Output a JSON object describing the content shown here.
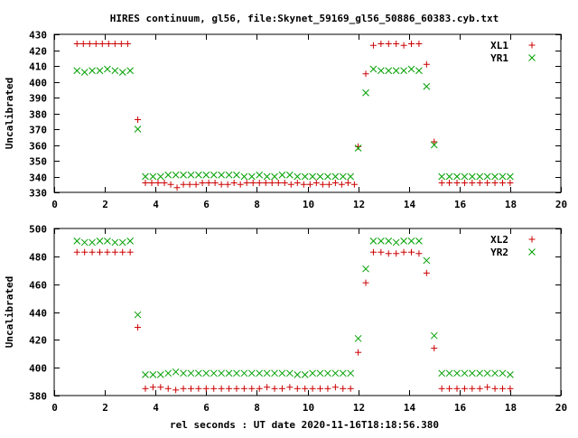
{
  "title": "HIRES continuum, gl56, file:Skynet_59169_gl56_50886_60383.cyb.txt",
  "xlabel": "rel seconds : UT date 2020-11-16T18:18:56.380",
  "colors": {
    "red": "#cc0000",
    "green": "#00a000",
    "frame": "#000000"
  },
  "chart_data": [
    {
      "type": "scatter",
      "ylabel": "Uncalibrated",
      "xlim": [
        0,
        20
      ],
      "ylim": [
        330,
        430
      ],
      "xticks": [
        0,
        2,
        4,
        6,
        8,
        10,
        12,
        14,
        16,
        18,
        20
      ],
      "yticks": [
        330,
        340,
        350,
        360,
        370,
        380,
        390,
        400,
        410,
        420,
        430
      ],
      "legend_position": "top-right",
      "series": [
        {
          "name": "XL1",
          "marker": "plus",
          "color": "#cc0000",
          "x": [
            0.9,
            1.15,
            1.4,
            1.65,
            1.9,
            2.15,
            2.4,
            2.65,
            2.9,
            3.3,
            3.6,
            3.85,
            4.1,
            4.35,
            4.6,
            4.85,
            5.1,
            5.35,
            5.6,
            5.85,
            6.1,
            6.35,
            6.6,
            6.85,
            7.1,
            7.35,
            7.6,
            7.85,
            8.1,
            8.35,
            8.6,
            8.85,
            9.1,
            9.35,
            9.6,
            9.85,
            10.1,
            10.35,
            10.6,
            10.85,
            11.1,
            11.35,
            11.6,
            11.85,
            12.0,
            12.3,
            12.6,
            12.9,
            13.2,
            13.5,
            13.8,
            14.1,
            14.4,
            14.7,
            15.0,
            15.3,
            15.6,
            15.9,
            16.2,
            16.5,
            16.8,
            17.1,
            17.4,
            17.7,
            18.0
          ],
          "y": [
            424,
            424,
            424,
            424,
            424,
            424,
            424,
            424,
            424,
            376,
            336,
            336,
            336,
            336,
            335,
            333,
            335,
            335,
            335,
            336,
            336,
            336,
            335,
            335,
            336,
            335,
            336,
            336,
            336,
            336,
            336,
            336,
            336,
            335,
            336,
            335,
            335,
            336,
            335,
            335,
            336,
            335,
            336,
            335,
            359,
            405,
            423,
            424,
            424,
            424,
            423,
            424,
            424,
            411,
            362,
            336,
            336,
            336,
            336,
            336,
            336,
            336,
            336,
            336,
            336
          ]
        },
        {
          "name": "YR1",
          "marker": "cross",
          "color": "#00a000",
          "x": [
            0.9,
            1.2,
            1.5,
            1.8,
            2.1,
            2.4,
            2.7,
            3.0,
            3.3,
            3.6,
            3.9,
            4.2,
            4.5,
            4.8,
            5.1,
            5.4,
            5.7,
            6.0,
            6.3,
            6.6,
            6.9,
            7.2,
            7.5,
            7.8,
            8.1,
            8.4,
            8.7,
            9.0,
            9.3,
            9.6,
            9.9,
            10.2,
            10.5,
            10.8,
            11.1,
            11.4,
            11.7,
            12.0,
            12.3,
            12.6,
            12.9,
            13.2,
            13.5,
            13.8,
            14.1,
            14.4,
            14.7,
            15.0,
            15.3,
            15.6,
            15.9,
            16.2,
            16.5,
            16.8,
            17.1,
            17.4,
            17.7,
            18.0
          ],
          "y": [
            407,
            406,
            407,
            407,
            408,
            407,
            406,
            407,
            370,
            340,
            340,
            340,
            341,
            341,
            341,
            341,
            341,
            341,
            341,
            341,
            341,
            341,
            340,
            340,
            341,
            340,
            340,
            341,
            341,
            340,
            340,
            340,
            340,
            340,
            340,
            340,
            340,
            358,
            393,
            408,
            407,
            407,
            407,
            407,
            408,
            407,
            397,
            360,
            340,
            340,
            340,
            340,
            340,
            340,
            340,
            340,
            340,
            340
          ]
        }
      ]
    },
    {
      "type": "scatter",
      "ylabel": "Uncalibrated",
      "xlim": [
        0,
        20
      ],
      "ylim": [
        380,
        500
      ],
      "xticks": [
        0,
        2,
        4,
        6,
        8,
        10,
        12,
        14,
        16,
        18,
        20
      ],
      "yticks": [
        380,
        400,
        420,
        440,
        460,
        480,
        500
      ],
      "legend_position": "top-right",
      "series": [
        {
          "name": "XL2",
          "marker": "plus",
          "color": "#cc0000",
          "x": [
            0.9,
            1.2,
            1.5,
            1.8,
            2.1,
            2.4,
            2.7,
            3.0,
            3.3,
            3.6,
            3.9,
            4.2,
            4.5,
            4.8,
            5.1,
            5.4,
            5.7,
            6.0,
            6.3,
            6.6,
            6.9,
            7.2,
            7.5,
            7.8,
            8.1,
            8.4,
            8.7,
            9.0,
            9.3,
            9.6,
            9.9,
            10.2,
            10.5,
            10.8,
            11.1,
            11.4,
            11.7,
            12.0,
            12.3,
            12.6,
            12.9,
            13.2,
            13.5,
            13.8,
            14.1,
            14.4,
            14.7,
            15.0,
            15.3,
            15.6,
            15.9,
            16.2,
            16.5,
            16.8,
            17.1,
            17.4,
            17.7,
            18.0
          ],
          "y": [
            483,
            483,
            483,
            483,
            483,
            483,
            483,
            483,
            429,
            385,
            386,
            386,
            385,
            384,
            385,
            385,
            385,
            385,
            385,
            385,
            385,
            385,
            385,
            385,
            385,
            386,
            385,
            385,
            386,
            385,
            385,
            385,
            385,
            385,
            386,
            385,
            385,
            411,
            461,
            483,
            483,
            482,
            482,
            483,
            483,
            482,
            468,
            414,
            385,
            385,
            385,
            385,
            385,
            385,
            386,
            385,
            385,
            385
          ]
        },
        {
          "name": "YR2",
          "marker": "cross",
          "color": "#00a000",
          "x": [
            0.9,
            1.2,
            1.5,
            1.8,
            2.1,
            2.4,
            2.7,
            3.0,
            3.3,
            3.6,
            3.9,
            4.2,
            4.5,
            4.8,
            5.1,
            5.4,
            5.7,
            6.0,
            6.3,
            6.6,
            6.9,
            7.2,
            7.5,
            7.8,
            8.1,
            8.4,
            8.7,
            9.0,
            9.3,
            9.6,
            9.9,
            10.2,
            10.5,
            10.8,
            11.1,
            11.4,
            11.7,
            12.0,
            12.3,
            12.6,
            12.9,
            13.2,
            13.5,
            13.8,
            14.1,
            14.4,
            14.7,
            15.0,
            15.3,
            15.6,
            15.9,
            16.2,
            16.5,
            16.8,
            17.1,
            17.4,
            17.7,
            18.0
          ],
          "y": [
            491,
            490,
            490,
            491,
            491,
            490,
            490,
            491,
            438,
            395,
            395,
            395,
            396,
            397,
            396,
            396,
            396,
            396,
            396,
            396,
            396,
            396,
            396,
            396,
            396,
            396,
            396,
            396,
            396,
            395,
            395,
            396,
            396,
            396,
            396,
            396,
            396,
            421,
            471,
            491,
            491,
            491,
            490,
            491,
            491,
            491,
            477,
            423,
            396,
            396,
            396,
            396,
            396,
            396,
            396,
            396,
            396,
            395
          ]
        }
      ]
    }
  ]
}
